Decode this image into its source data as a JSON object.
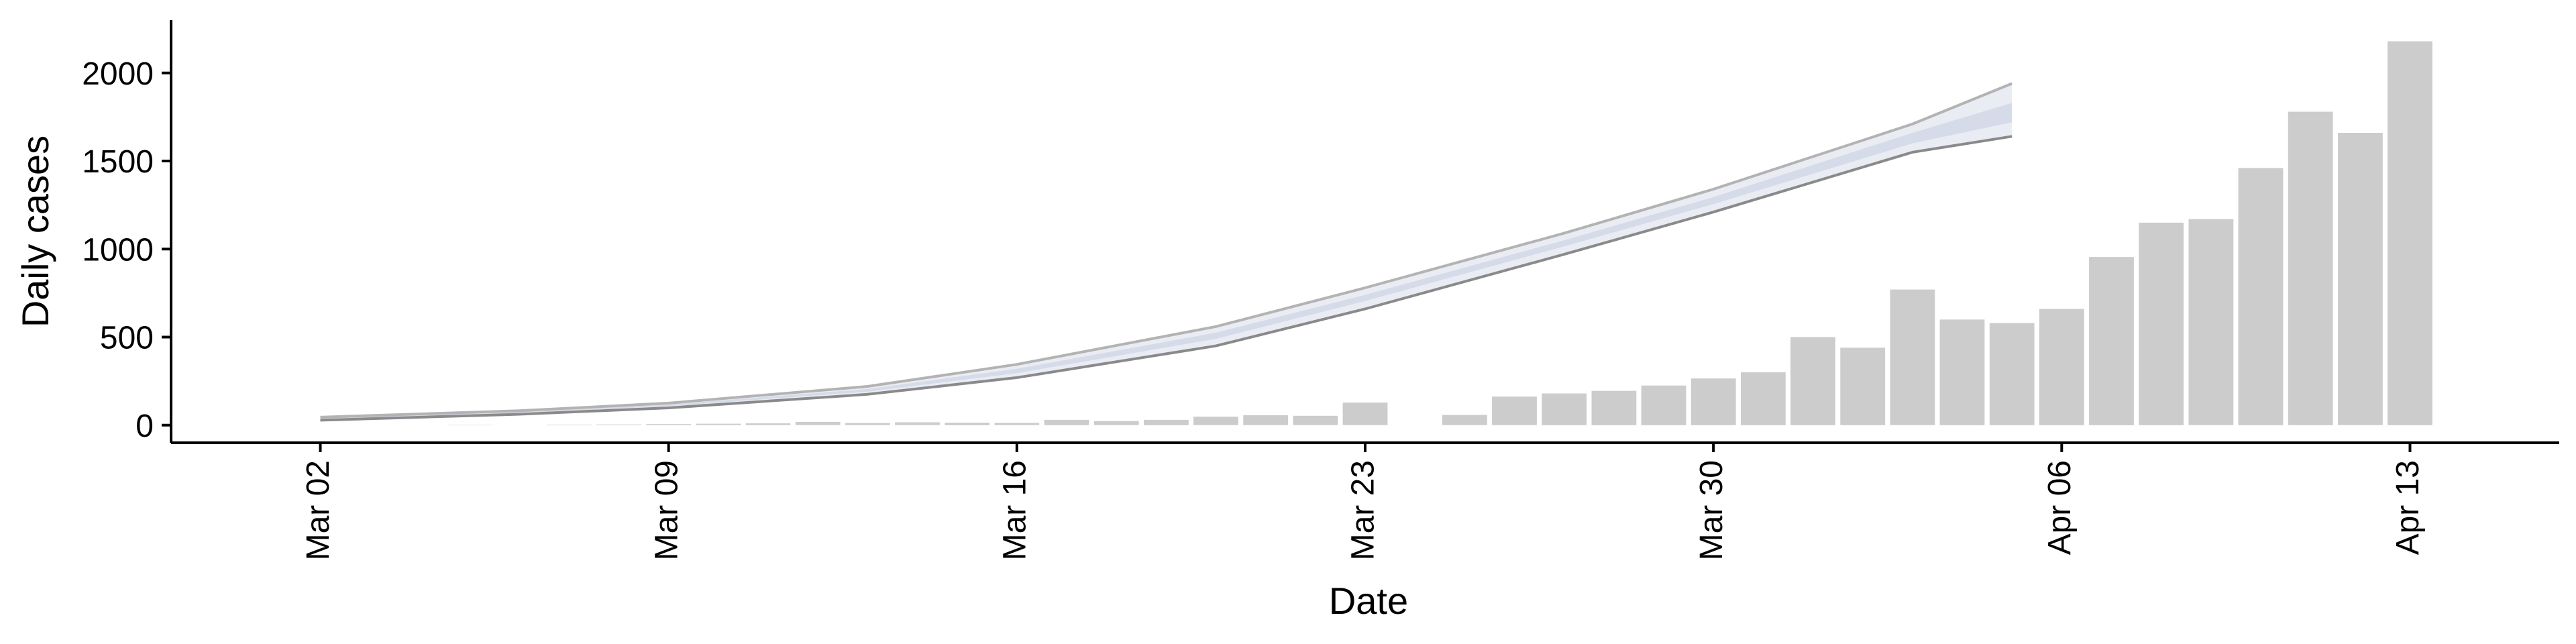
{
  "chart_data": {
    "type": "bar",
    "xlabel": "Date",
    "ylabel": "Daily cases",
    "ylim": [
      -100,
      2300
    ],
    "xlim": [
      "2020-02-28",
      "2020-04-16"
    ],
    "x_ticks": [
      {
        "date": "2020-03-02",
        "label": "Mar 02"
      },
      {
        "date": "2020-03-09",
        "label": "Mar 09"
      },
      {
        "date": "2020-03-16",
        "label": "Mar 16"
      },
      {
        "date": "2020-03-23",
        "label": "Mar 23"
      },
      {
        "date": "2020-03-30",
        "label": "Mar 30"
      },
      {
        "date": "2020-04-06",
        "label": "Apr 06"
      },
      {
        "date": "2020-04-13",
        "label": "Apr 13"
      }
    ],
    "y_ticks": [
      0,
      500,
      1000,
      1500,
      2000
    ],
    "x_label_rotation": "vertical",
    "grid": false,
    "colors": {
      "bars": "#cccccc",
      "band_outer": "#eaecf3",
      "band_inner": "#d6dbe9",
      "line_lower": "#8a8a8a",
      "line_upper": "#b3b3b3",
      "axis": "#000000"
    },
    "bars": {
      "x": [
        "2020-03-05",
        "2020-03-07",
        "2020-03-08",
        "2020-03-09",
        "2020-03-10",
        "2020-03-11",
        "2020-03-12",
        "2020-03-13",
        "2020-03-14",
        "2020-03-15",
        "2020-03-16",
        "2020-03-17",
        "2020-03-18",
        "2020-03-19",
        "2020-03-20",
        "2020-03-21",
        "2020-03-22",
        "2020-03-23",
        "2020-03-25",
        "2020-03-26",
        "2020-03-27",
        "2020-03-28",
        "2020-03-29",
        "2020-03-30",
        "2020-03-31",
        "2020-04-01",
        "2020-04-02",
        "2020-04-03",
        "2020-04-04",
        "2020-04-05",
        "2020-04-06",
        "2020-04-07",
        "2020-04-08",
        "2020-04-09",
        "2020-04-10",
        "2020-04-11",
        "2020-04-12",
        "2020-04-13"
      ],
      "values": [
        2,
        3,
        4,
        6,
        8,
        10,
        18,
        12,
        16,
        14,
        13,
        30,
        23,
        30,
        48,
        56,
        53,
        128,
        58,
        162,
        180,
        195,
        225,
        265,
        300,
        500,
        440,
        770,
        600,
        580,
        660,
        955,
        1150,
        1170,
        1460,
        1780,
        1660,
        2180
      ]
    },
    "series": [
      {
        "type": "band",
        "x": [
          "2020-03-02",
          "2020-03-06",
          "2020-03-09",
          "2020-03-13",
          "2020-03-16",
          "2020-03-20",
          "2020-03-23",
          "2020-03-27",
          "2020-03-30",
          "2020-04-03",
          "2020-04-05"
        ],
        "low": [
          28,
          62,
          98,
          175,
          270,
          450,
          660,
          970,
          1210,
          1550,
          1640
        ],
        "high": [
          45,
          82,
          125,
          220,
          345,
          560,
          780,
          1090,
          1340,
          1710,
          1940
        ],
        "mid_low": [
          34,
          70,
          108,
          190,
          295,
          490,
          705,
          1015,
          1255,
          1600,
          1720
        ],
        "mid_high": [
          40,
          76,
          117,
          205,
          320,
          525,
          740,
          1050,
          1295,
          1660,
          1830
        ]
      }
    ]
  }
}
